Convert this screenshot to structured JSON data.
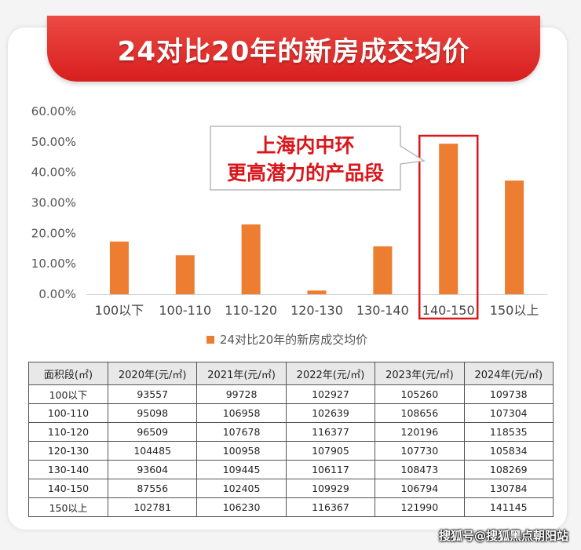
{
  "banner": {
    "title": "24对比20年的新房成交均价"
  },
  "colors": {
    "bar": "#ed7d31",
    "callout": "#d9161b",
    "banner": "#e02a26"
  },
  "chart_data": {
    "type": "bar",
    "categories": [
      "100以下",
      "100-110",
      "110-120",
      "120-130",
      "130-140",
      "140-150",
      "150以上"
    ],
    "series": [
      {
        "name": "24对比20年的新房成交均价",
        "values": [
          17.3,
          12.8,
          22.9,
          1.2,
          15.7,
          49.4,
          37.3
        ]
      }
    ],
    "yticks": [
      "0.00%",
      "10.00%",
      "20.00%",
      "30.00%",
      "40.00%",
      "50.00%",
      "60.00%"
    ],
    "ylim": [
      0,
      60
    ],
    "highlight_category": "140-150",
    "callout": {
      "line1": "上海内中环",
      "line2": "更高潜力的产品段"
    },
    "legend_position": "bottom"
  },
  "table": {
    "headers": [
      "面积段(㎡)",
      "2020年(元/㎡)",
      "2021年(元/㎡)",
      "2022年(元/㎡)",
      "2023年(元/㎡)",
      "2024年(元/㎡)"
    ],
    "rows": [
      [
        "100以下",
        "93557",
        "99728",
        "102927",
        "105260",
        "109738"
      ],
      [
        "100-110",
        "95098",
        "106958",
        "102639",
        "108656",
        "107304"
      ],
      [
        "110-120",
        "96509",
        "107678",
        "116377",
        "120196",
        "118535"
      ],
      [
        "120-130",
        "104485",
        "100958",
        "107905",
        "107730",
        "105834"
      ],
      [
        "130-140",
        "93604",
        "109445",
        "106117",
        "108473",
        "108269"
      ],
      [
        "140-150",
        "87556",
        "102405",
        "109929",
        "106794",
        "130784"
      ],
      [
        "150以上",
        "102781",
        "106230",
        "116367",
        "121990",
        "141145"
      ]
    ]
  },
  "watermark": "搜狐号@搜狐黑点朝阳站"
}
